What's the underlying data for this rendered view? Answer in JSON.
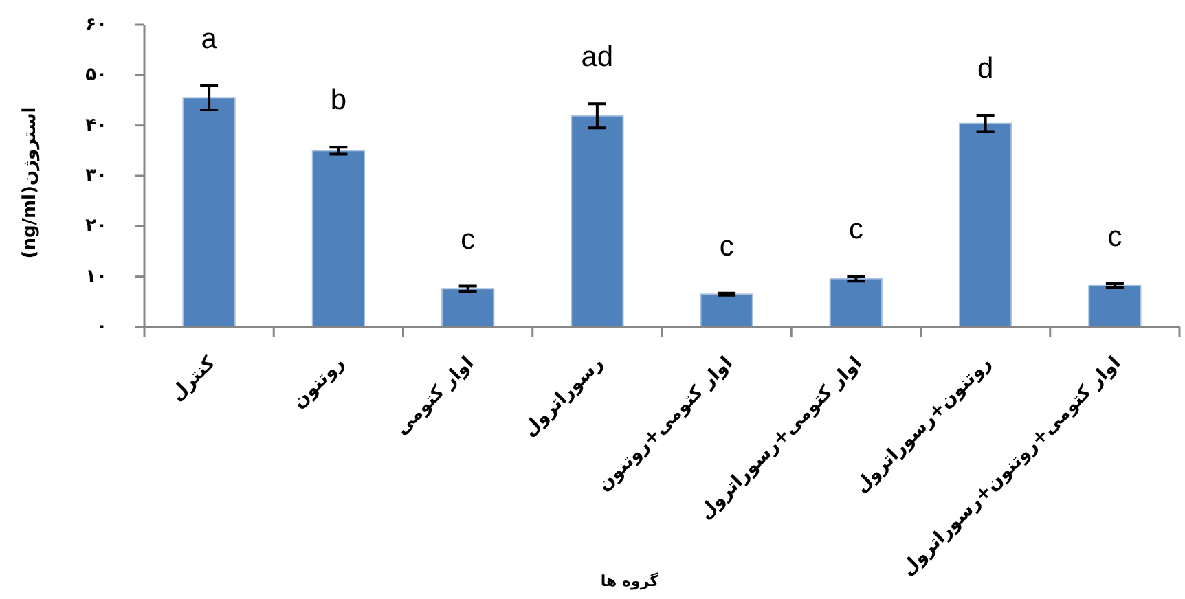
{
  "chart_data": {
    "type": "bar",
    "categories": [
      "کنترل",
      "روتنون",
      "اوار کتومی",
      "رسوراترول",
      "اوار کتومی+روتنون",
      "اوار کتومی+رسوراترول",
      "روتنون+رسوراترول",
      "اوار کتومی+روتنون+رسوراترول"
    ],
    "values": [
      45.5,
      35.0,
      7.6,
      41.9,
      6.5,
      9.6,
      40.4,
      8.2
    ],
    "errors": [
      2.4,
      0.7,
      0.5,
      2.4,
      0.2,
      0.5,
      1.6,
      0.4
    ],
    "color": "#4f81bd",
    "ylabel": "استروژن(ng/ml)",
    "xlabel": "گروه ها",
    "ylim": [
      0,
      60
    ],
    "yticks": [
      {
        "value": 0,
        "label": "۰"
      },
      {
        "value": 10,
        "label": "۱۰"
      },
      {
        "value": 20,
        "label": "۲۰"
      },
      {
        "value": 30,
        "label": "۳۰"
      },
      {
        "value": 40,
        "label": "۴۰"
      },
      {
        "value": 50,
        "label": "۵۰"
      },
      {
        "value": 60,
        "label": "۶۰"
      }
    ],
    "annotations": [
      "a",
      "b",
      "c",
      "ad",
      "c",
      "c",
      "d",
      "c"
    ]
  }
}
